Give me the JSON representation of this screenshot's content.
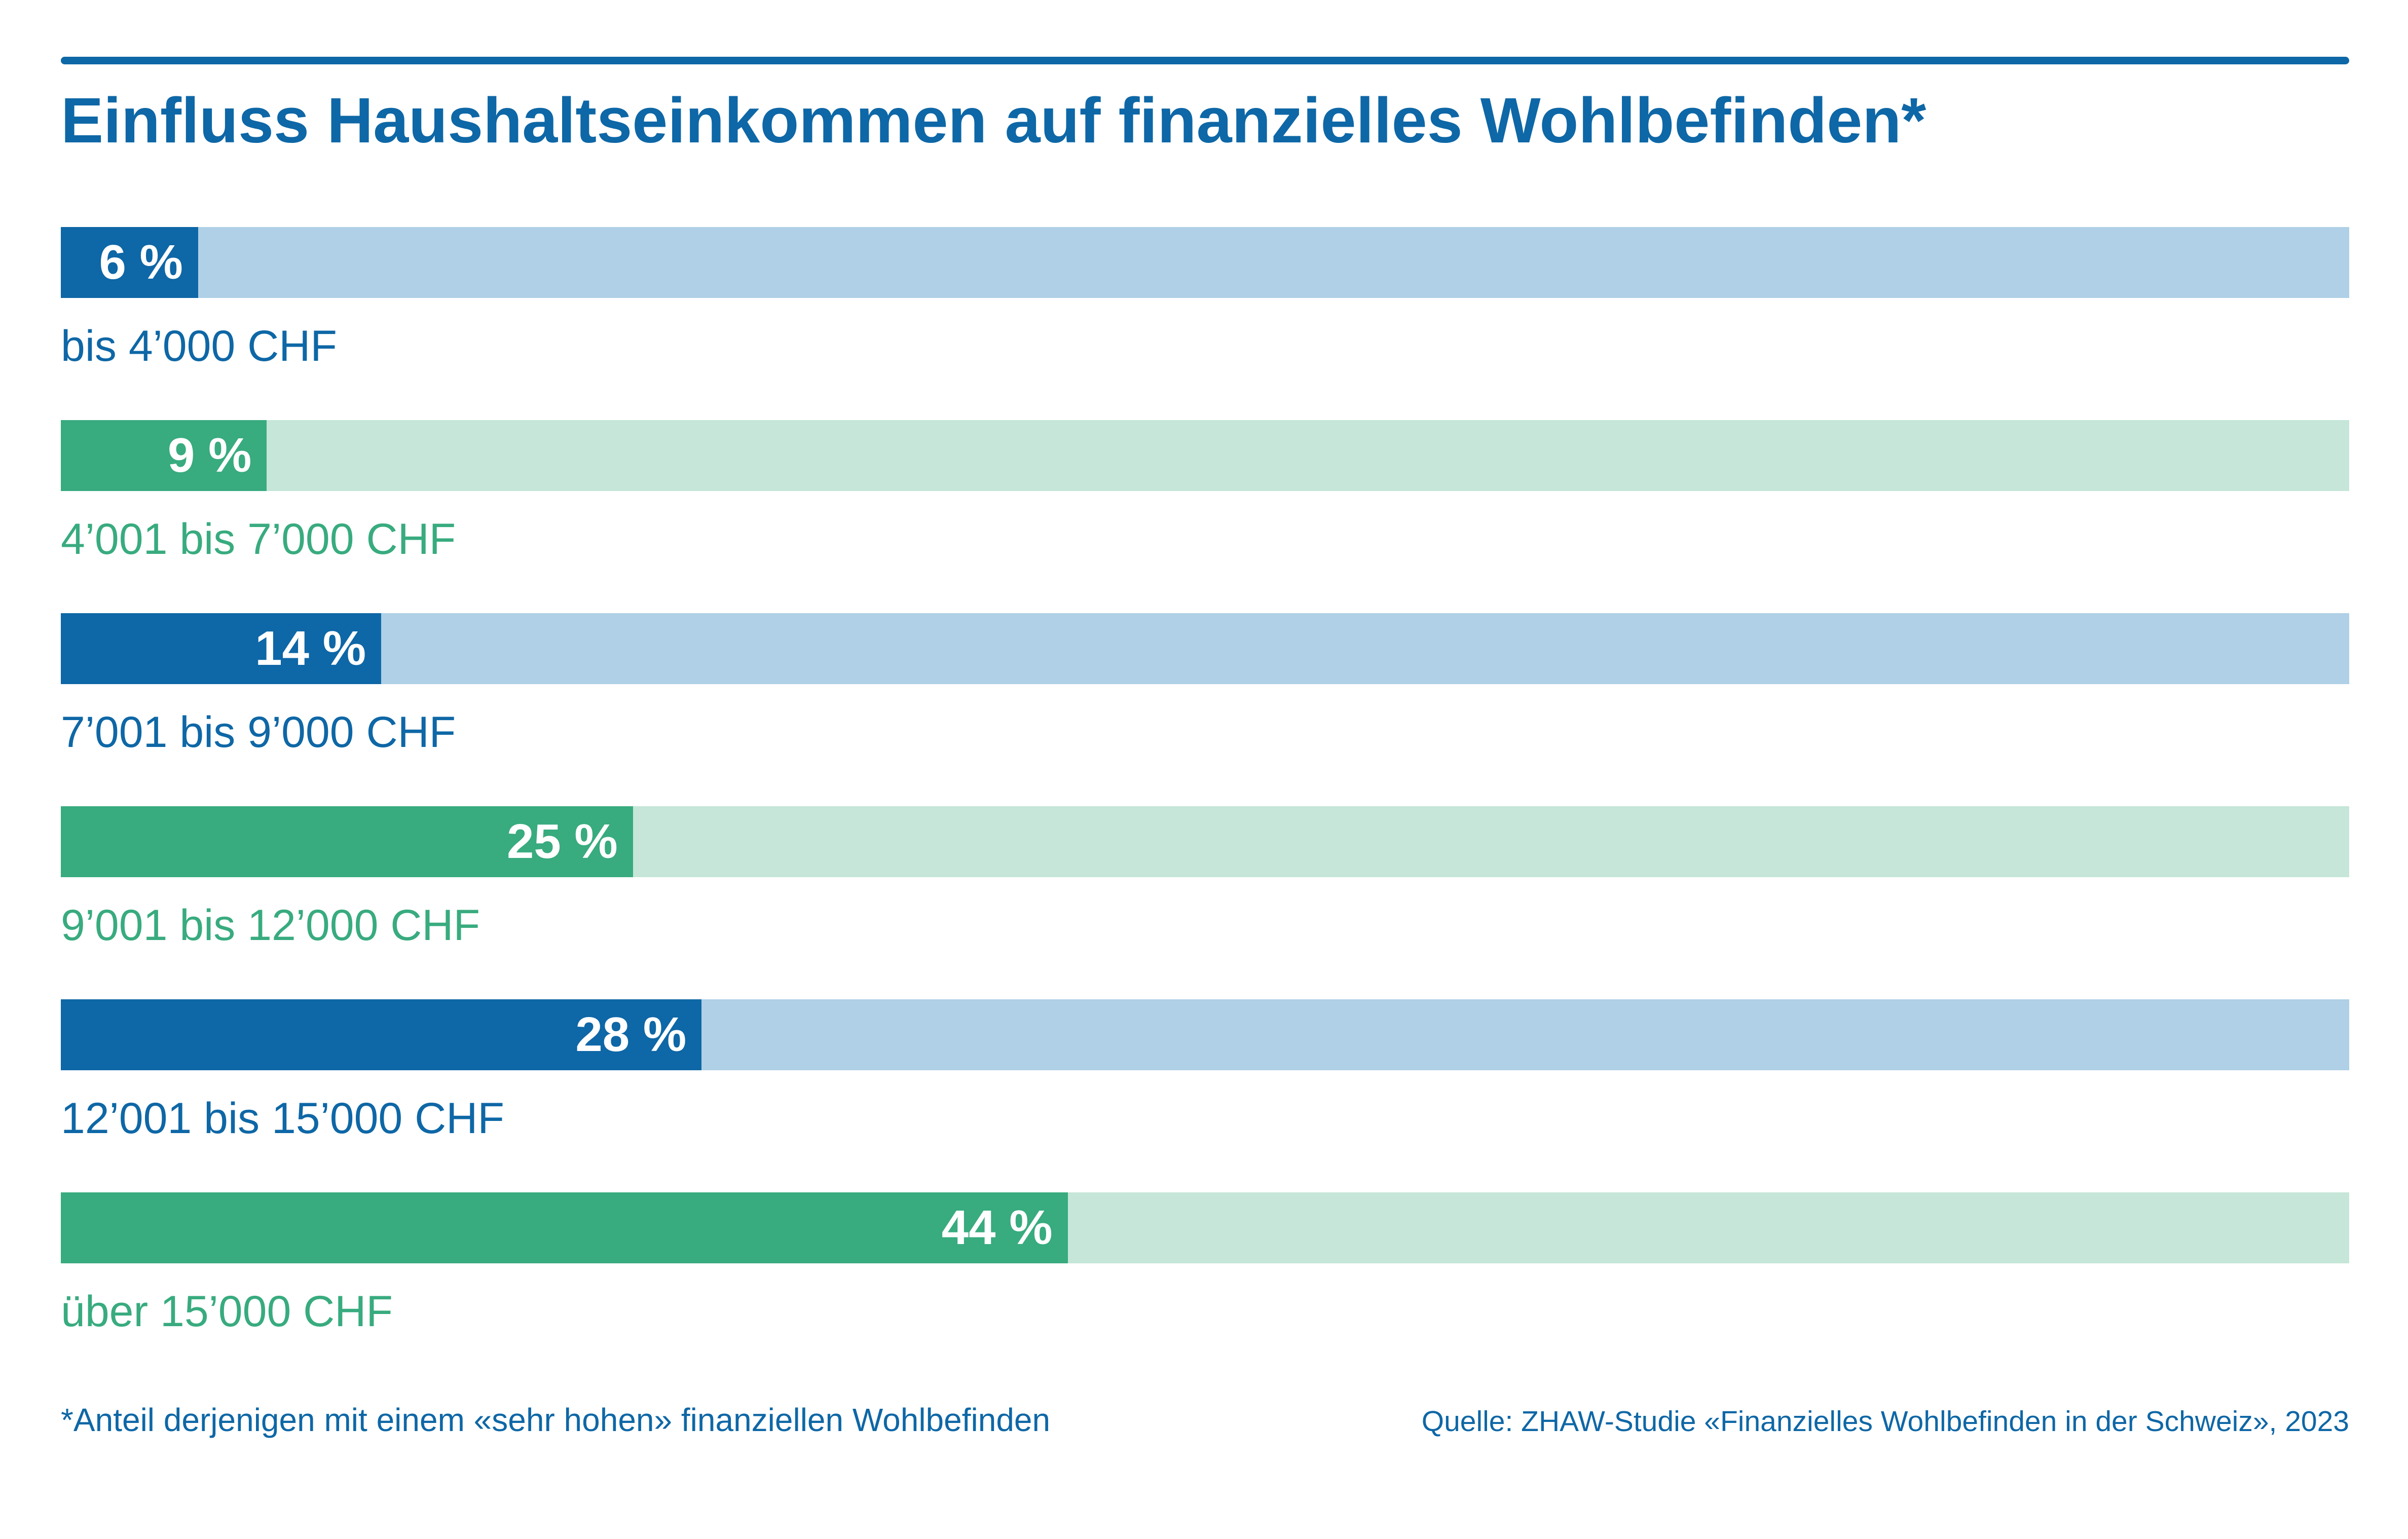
{
  "title": "Einfluss Haushaltseinkommen auf finanzielles Wohlbefinden*",
  "footnote": "*Anteil derjenigen mit einem «sehr hohen» finanziellen Wohlbefinden",
  "source": "Quelle: ZHAW-Studie «Finanzielles Wohlbefinden in der Schweiz», 2023",
  "colors": {
    "accent_blue": "#0e67a6",
    "accent_blue_light": "#afd0e6",
    "accent_green": "#38ab7f",
    "accent_green_light": "#c5e6d8",
    "background": "#ffffff",
    "bar_value_text": "#ffffff"
  },
  "chart_data": {
    "type": "bar",
    "orientation": "horizontal",
    "title": "Einfluss Haushaltseinkommen auf finanzielles Wohlbefinden*",
    "categories": [
      "bis 4’000 CHF",
      "4’001 bis 7’000 CHF",
      "7’001 bis 9’000 CHF",
      "9’001 bis 12’000 CHF",
      "12’001 bis 15’000 CHF",
      "über 15’000 CHF"
    ],
    "values": [
      6,
      9,
      14,
      25,
      28,
      44
    ],
    "value_labels": [
      "6 %",
      "9 %",
      "14 %",
      "25 %",
      "28 %",
      "44 %"
    ],
    "xlim": [
      0,
      100
    ],
    "grid": false,
    "legend": false,
    "track_full_width": true,
    "bar_colors": [
      "#0e67a6",
      "#38ab7f",
      "#0e67a6",
      "#38ab7f",
      "#0e67a6",
      "#38ab7f"
    ],
    "track_colors": [
      "#afd0e6",
      "#c5e6d8",
      "#afd0e6",
      "#c5e6d8",
      "#afd0e6",
      "#c5e6d8"
    ],
    "footnote": "*Anteil derjenigen mit einem «sehr hohen» finanziellen Wohlbefinden",
    "source": "Quelle: ZHAW-Studie «Finanzielles Wohlbefinden in der Schweiz», 2023",
    "bars": [
      {
        "category": "bis 4’000 CHF",
        "value": 6,
        "value_label": "6 %",
        "theme": "blue"
      },
      {
        "category": "4’001 bis 7’000 CHF",
        "value": 9,
        "value_label": "9 %",
        "theme": "green"
      },
      {
        "category": "7’001 bis 9’000 CHF",
        "value": 14,
        "value_label": "14 %",
        "theme": "blue"
      },
      {
        "category": "9’001 bis 12’000 CHF",
        "value": 25,
        "value_label": "25 %",
        "theme": "green"
      },
      {
        "category": "12’001 bis 15’000 CHF",
        "value": 28,
        "value_label": "28 %",
        "theme": "blue"
      },
      {
        "category": "über 15’000 CHF",
        "value": 44,
        "value_label": "44 %",
        "theme": "green"
      }
    ]
  }
}
